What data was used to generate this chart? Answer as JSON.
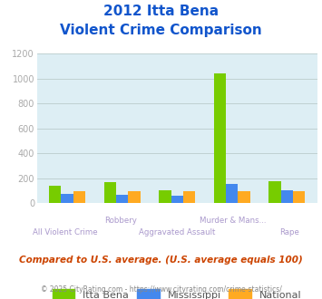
{
  "title_line1": "2012 Itta Bena",
  "title_line2": "Violent Crime Comparison",
  "cat_labels_row1": [
    "",
    "Robbery",
    "",
    "Murder & Mans...",
    ""
  ],
  "cat_labels_row2": [
    "All Violent Crime",
    "",
    "Aggravated Assault",
    "",
    "Rape"
  ],
  "itta_bena": [
    140,
    170,
    105,
    1045,
    180
  ],
  "mississippi": [
    72,
    70,
    63,
    157,
    107
  ],
  "national": [
    97,
    95,
    100,
    95,
    97
  ],
  "color_itta_bena": "#77cc00",
  "color_mississippi": "#4488ee",
  "color_national": "#ffaa22",
  "color_bg": "#ddeef4",
  "ylim": [
    0,
    1200
  ],
  "yticks": [
    0,
    200,
    400,
    600,
    800,
    1000,
    1200
  ],
  "ylabel_color": "#aaaaaa",
  "title_color": "#1155cc",
  "subtitle_note": "Compared to U.S. average. (U.S. average equals 100)",
  "footer_text": "© 2025 CityRating.com - ",
  "footer_link": "https://www.cityrating.com/crime-statistics/",
  "legend_labels": [
    "Itta Bena",
    "Mississippi",
    "National"
  ],
  "grid_color": "#bbcccc",
  "label_color": "#aa99cc"
}
